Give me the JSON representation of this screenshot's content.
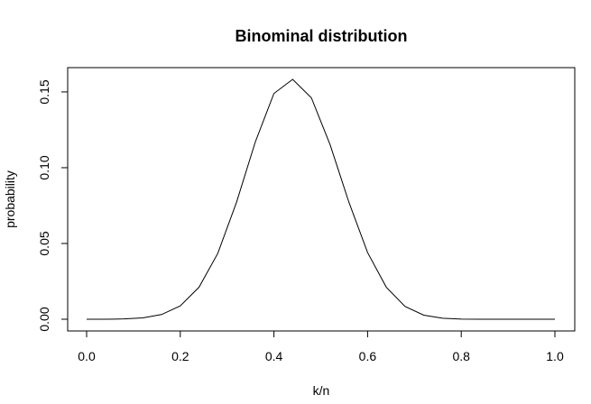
{
  "chart_data": {
    "type": "line",
    "title": "Binominal distribution",
    "xlabel": "k/n",
    "ylabel": "probability",
    "xlim": [
      0,
      1
    ],
    "ylim": [
      0,
      0.16
    ],
    "grid": false,
    "x_ticks": [
      {
        "value": 0.0,
        "label": "0.0"
      },
      {
        "value": 0.2,
        "label": "0.2"
      },
      {
        "value": 0.4,
        "label": "0.4"
      },
      {
        "value": 0.6,
        "label": "0.6"
      },
      {
        "value": 0.8,
        "label": "0.8"
      },
      {
        "value": 1.0,
        "label": "1.0"
      }
    ],
    "y_ticks": [
      {
        "value": 0.0,
        "label": "0.00"
      },
      {
        "value": 0.05,
        "label": "0.05"
      },
      {
        "value": 0.1,
        "label": "0.10"
      },
      {
        "value": 0.15,
        "label": "0.15"
      }
    ],
    "series": [
      {
        "color": "#000000",
        "x": [
          0.0,
          0.04,
          0.08,
          0.12,
          0.16,
          0.2,
          0.24,
          0.28,
          0.32,
          0.36,
          0.4,
          0.44,
          0.48,
          0.52,
          0.56,
          0.6,
          0.64,
          0.68,
          0.72,
          0.76,
          0.8,
          0.84,
          0.88,
          0.92,
          0.96,
          1.0
        ],
        "y": [
          0.0,
          0.0,
          0.0002,
          0.0009,
          0.0031,
          0.0088,
          0.0211,
          0.0434,
          0.0771,
          0.1168,
          0.149,
          0.1583,
          0.1461,
          0.1151,
          0.0773,
          0.044,
          0.0211,
          0.0084,
          0.0027,
          0.0007,
          0.0001,
          0.0,
          0.0,
          0.0,
          0.0,
          0.0
        ]
      }
    ]
  }
}
